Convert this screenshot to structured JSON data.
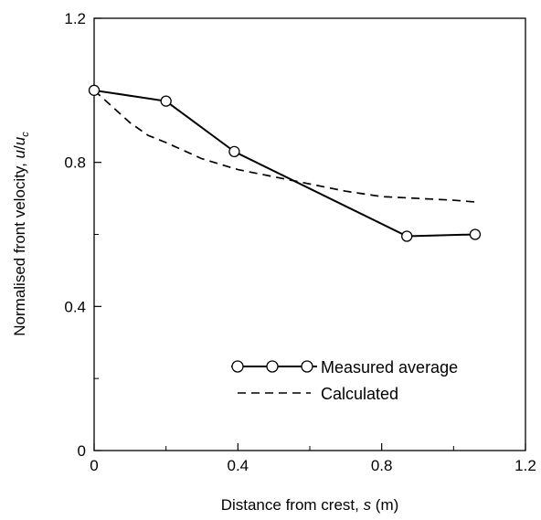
{
  "chart_data": {
    "type": "line",
    "title": "",
    "xlabel": {
      "prefix": "Distance from crest, ",
      "symbol": "s",
      "suffix": " (m)"
    },
    "ylabel": {
      "prefix": "Normalised front velocity, ",
      "num": "u",
      "slash": "/",
      "den": "u",
      "den_sub": "c"
    },
    "xlim": [
      0,
      1.2
    ],
    "ylim": [
      0,
      1.2
    ],
    "xticks": [
      0,
      0.4,
      0.8,
      1.2
    ],
    "yticks": [
      0,
      0.4,
      0.8,
      1.2
    ],
    "xtick_labels": [
      "0",
      "0.4",
      "0.8",
      "1.2"
    ],
    "ytick_labels": [
      "0",
      "0.4",
      "0.8",
      "1.2"
    ],
    "xminor": [
      0.2,
      0.6,
      1.0
    ],
    "yminor": [
      0.2,
      0.6,
      1.0
    ],
    "grid": false,
    "legend_position": "lower-right",
    "series": [
      {
        "name": "Measured average",
        "style": "solid-circle-markers",
        "color": "#000000",
        "x": [
          0,
          0.2,
          0.39,
          0.87,
          1.06
        ],
        "y": [
          1.0,
          0.97,
          0.83,
          0.595,
          0.6
        ]
      },
      {
        "name": "Calculated",
        "style": "dashed",
        "color": "#000000",
        "x": [
          0,
          0.05,
          0.1,
          0.15,
          0.2,
          0.3,
          0.4,
          0.5,
          0.6,
          0.7,
          0.8,
          0.9,
          1.0,
          1.06
        ],
        "y": [
          1.0,
          0.955,
          0.91,
          0.875,
          0.855,
          0.81,
          0.78,
          0.76,
          0.74,
          0.72,
          0.705,
          0.7,
          0.695,
          0.69
        ]
      }
    ]
  }
}
